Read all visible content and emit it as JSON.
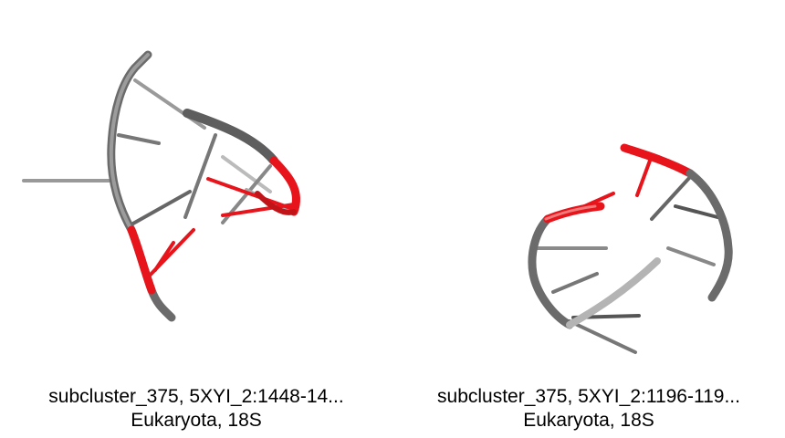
{
  "panels": [
    {
      "title": "subcluster_375, 5XYI_2:1448-14...",
      "subtitle": "Eukaryota, 18S"
    },
    {
      "title": "subcluster_375, 5XYI_2:1196-119...",
      "subtitle": "Eukaryota, 18S"
    }
  ],
  "colors": {
    "backbone": "#6e6e6e",
    "highlight": "#e8141b",
    "base": "#888888"
  }
}
